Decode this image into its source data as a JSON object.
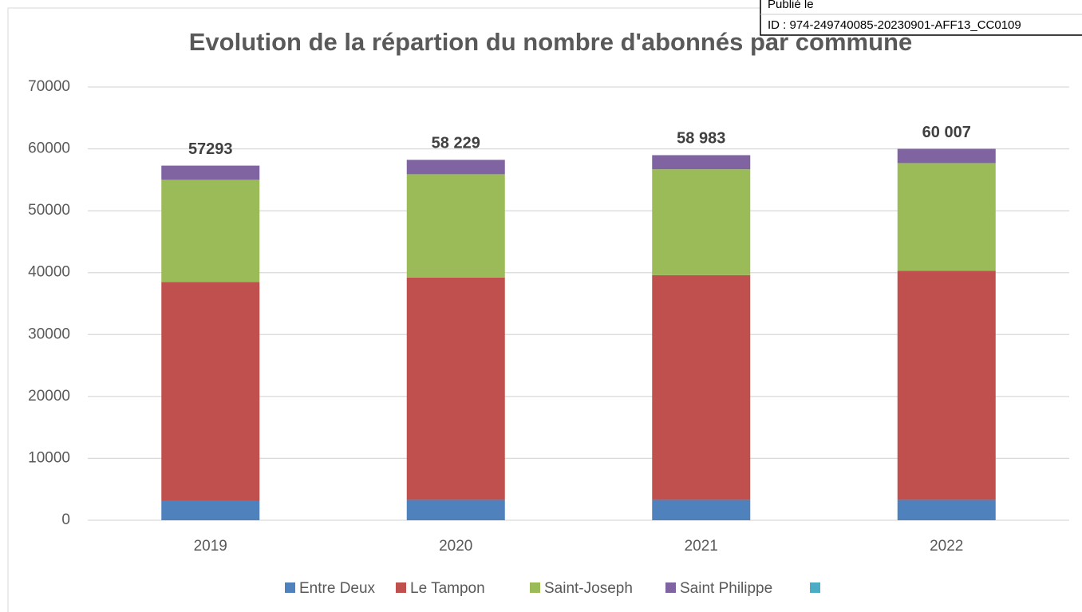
{
  "chart_data": {
    "type": "stacked_bar",
    "title": "Evolution de la répartion du nombre d'abonnés par commune",
    "categories": [
      "2019",
      "2020",
      "2021",
      "2022"
    ],
    "series": [
      {
        "name": "Entre Deux",
        "color": "#4f81bd",
        "values": [
          3100,
          3300,
          3300,
          3300
        ]
      },
      {
        "name": "Le Tampon",
        "color": "#c0504d",
        "values": [
          35400,
          35900,
          36300,
          37000
        ]
      },
      {
        "name": "Saint-Joseph",
        "color": "#9bbb59",
        "values": [
          16500,
          16700,
          17100,
          17400
        ]
      },
      {
        "name": "Saint Philippe",
        "color": "#8064a2",
        "values": [
          2293,
          2329,
          2283,
          2307
        ]
      },
      {
        "name": null,
        "color": "#4bacc6",
        "values": [
          null,
          null,
          null,
          null
        ]
      }
    ],
    "totals": [
      57293,
      58229,
      58983,
      60007
    ],
    "total_labels": [
      "57293",
      "58 229",
      "58 983",
      "60 007"
    ],
    "ylim": [
      0,
      70000
    ],
    "yticks": [
      0,
      10000,
      20000,
      30000,
      40000,
      50000,
      60000,
      70000
    ],
    "grid": true,
    "legend": "bottom"
  },
  "stamp": {
    "lines": [
      "Publié le",
      "ID : 974-249740085-20230901-AFF13_CC0109"
    ]
  }
}
